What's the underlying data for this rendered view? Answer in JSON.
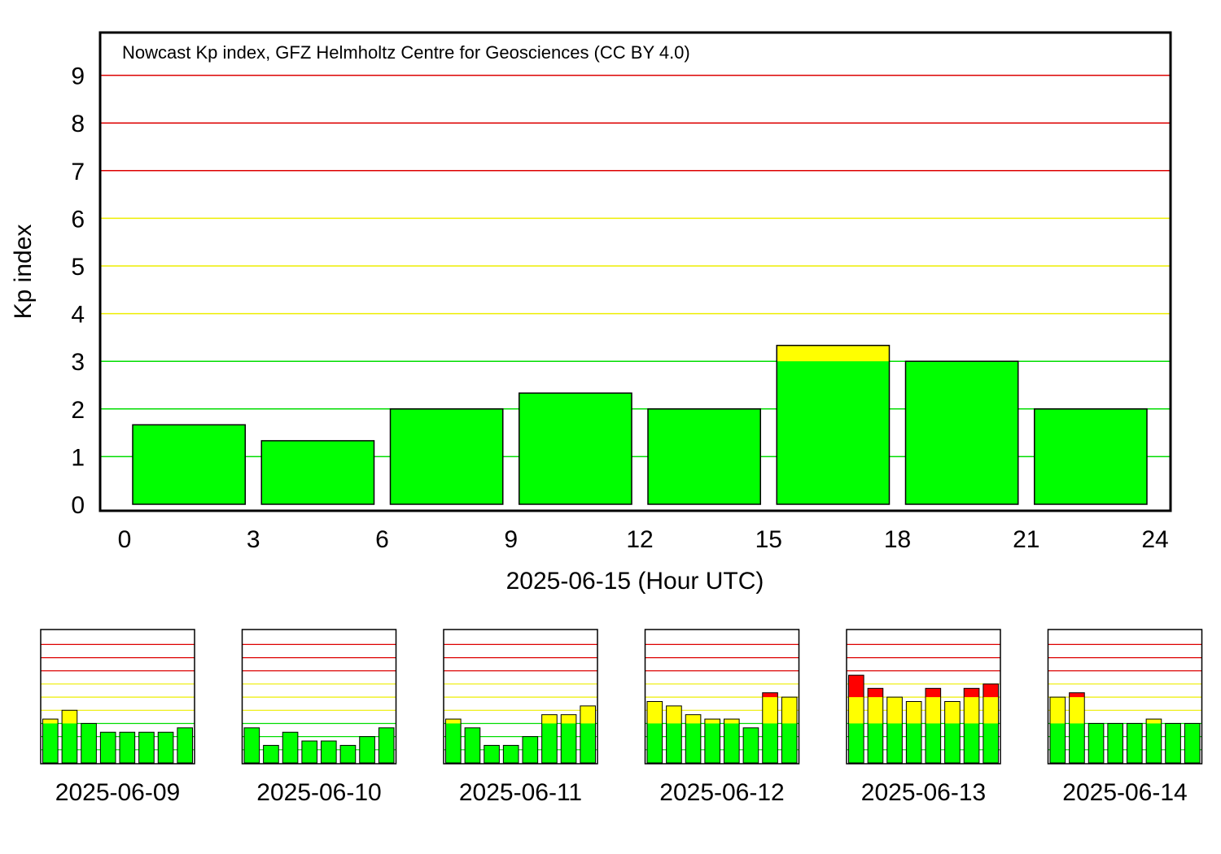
{
  "colors": {
    "quiet": "#00ff00",
    "active": "#ffff00",
    "storm": "#ff0000",
    "grid_quiet": "#00dd00",
    "grid_active": "#eeee00",
    "grid_storm": "#dd0000",
    "frame": "#000000"
  },
  "chart_data": [
    {
      "type": "bar",
      "title": "Nowcast Kp index, GFZ Helmholtz Centre for Geosciences (CC BY 4.0)",
      "xlabel": "2025-06-15 (Hour UTC)",
      "ylabel": "Kp index",
      "xlim": [
        0,
        24
      ],
      "ylim": [
        0,
        9
      ],
      "xticks": [
        "0",
        "3",
        "6",
        "9",
        "12",
        "15",
        "18",
        "21",
        "24"
      ],
      "yticks": [
        "0",
        "1",
        "2",
        "3",
        "4",
        "5",
        "6",
        "7",
        "8",
        "9"
      ],
      "categories": [
        "0",
        "3",
        "6",
        "9",
        "12",
        "15",
        "18",
        "21"
      ],
      "values": [
        1.667,
        1.333,
        2.0,
        2.333,
        2.0,
        3.333,
        3.0,
        2.0
      ],
      "color_thresholds": {
        "green_below": 3,
        "yellow_below": 5,
        "red_above": 5
      },
      "grid": true
    },
    {
      "type": "bar",
      "xlabel": "2025-06-09",
      "ylim": [
        0,
        9
      ],
      "values": [
        3.333,
        4.0,
        3.0,
        2.333,
        2.333,
        2.333,
        2.333,
        2.667
      ]
    },
    {
      "type": "bar",
      "xlabel": "2025-06-10",
      "ylim": [
        0,
        9
      ],
      "values": [
        2.667,
        1.333,
        2.333,
        1.667,
        1.667,
        1.333,
        2.0,
        2.667
      ]
    },
    {
      "type": "bar",
      "xlabel": "2025-06-11",
      "ylim": [
        0,
        9
      ],
      "values": [
        3.333,
        2.667,
        1.333,
        1.333,
        2.0,
        3.667,
        3.667,
        4.333
      ]
    },
    {
      "type": "bar",
      "xlabel": "2025-06-12",
      "ylim": [
        0,
        9
      ],
      "values": [
        4.667,
        4.333,
        3.667,
        3.333,
        3.333,
        2.667,
        5.333,
        5.0
      ]
    },
    {
      "type": "bar",
      "xlabel": "2025-06-13",
      "ylim": [
        0,
        9
      ],
      "values": [
        6.667,
        5.667,
        5.0,
        4.667,
        5.667,
        4.667,
        5.667,
        6.0
      ]
    },
    {
      "type": "bar",
      "xlabel": "2025-06-14",
      "ylim": [
        0,
        9
      ],
      "values": [
        5.0,
        5.333,
        3.0,
        3.0,
        3.0,
        3.333,
        3.0,
        3.0
      ]
    }
  ]
}
